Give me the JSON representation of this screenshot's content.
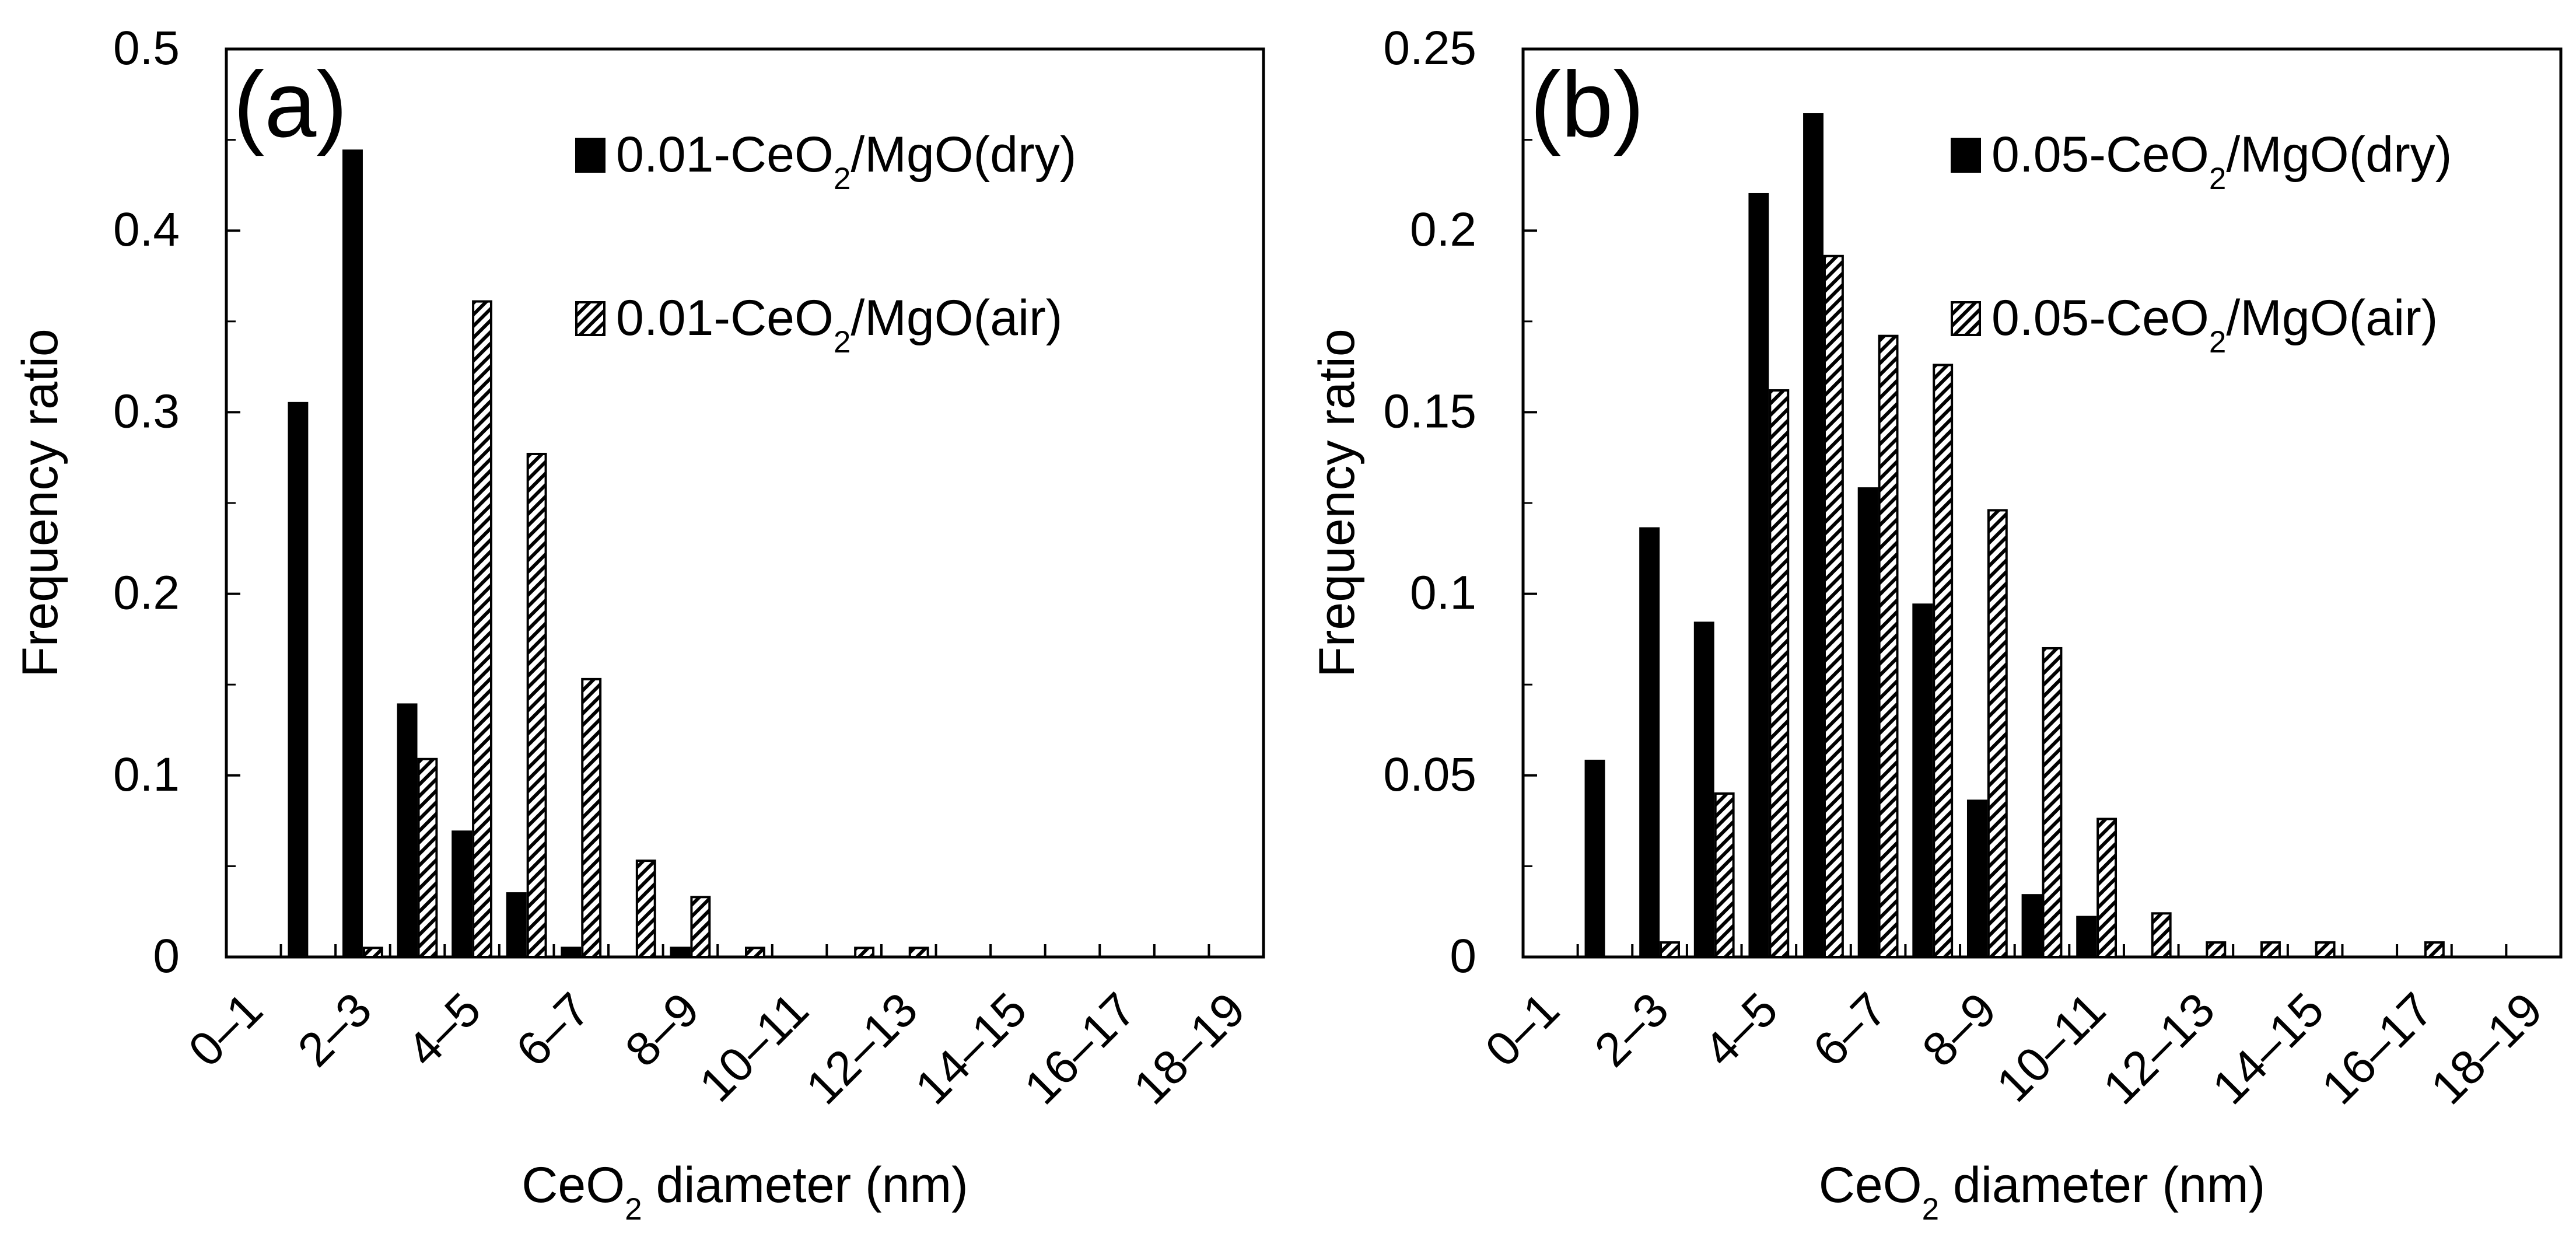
{
  "chart_data": [
    {
      "type": "bar",
      "panel_label": "(a)",
      "categories": [
        "0–1",
        "1–2",
        "2–3",
        "3–4",
        "4–5",
        "5–6",
        "6–7",
        "7–8",
        "8–9",
        "9–10",
        "10–11",
        "11–12",
        "12–13",
        "13–14",
        "14–15",
        "15–16",
        "16–17",
        "17–18",
        "18–19"
      ],
      "tick_labels": [
        "0–1",
        "2–3",
        "4–5",
        "6–7",
        "8–9",
        "10–11",
        "12–13",
        "14–15",
        "16–17",
        "18–19"
      ],
      "series": [
        {
          "name": "0.01-CeO2/MgO(dry)",
          "name_parts": [
            "0.01-CeO",
            "2",
            "/MgO(dry)"
          ],
          "pattern": "solid",
          "values": [
            0,
            0.305,
            0.444,
            0.139,
            0.069,
            0.035,
            0.005,
            0,
            0.005,
            0,
            0,
            0,
            0,
            0,
            0,
            0,
            0,
            0,
            0
          ]
        },
        {
          "name": "0.01-CeO2/MgO(air)",
          "name_parts": [
            "0.01-CeO",
            "2",
            "/MgO(air)"
          ],
          "pattern": "hatched",
          "values": [
            0,
            0,
            0.005,
            0.109,
            0.361,
            0.277,
            0.153,
            0.053,
            0.033,
            0.005,
            0,
            0.005,
            0.005,
            0,
            0,
            0,
            0,
            0,
            0
          ]
        }
      ],
      "ylim": [
        0,
        0.5
      ],
      "yticks": [
        "0",
        "0.1",
        "0.2",
        "0.3",
        "0.4",
        "0.5"
      ],
      "ytick_values": [
        0,
        0.1,
        0.2,
        0.3,
        0.4,
        0.5
      ],
      "ylabel": "Frequency ratio",
      "xlabel_parts": [
        "CeO",
        "2",
        " diameter (nm)"
      ],
      "legend_position": "top-right",
      "grid": false
    },
    {
      "type": "bar",
      "panel_label": "(b)",
      "categories": [
        "0–1",
        "1–2",
        "2–3",
        "3–4",
        "4–5",
        "5–6",
        "6–7",
        "7–8",
        "8–9",
        "9–10",
        "10–11",
        "11–12",
        "12–13",
        "13–14",
        "14–15",
        "15–16",
        "16–17",
        "17–18",
        "18–19"
      ],
      "tick_labels": [
        "0–1",
        "2–3",
        "4–5",
        "6–7",
        "8–9",
        "10–11",
        "12–13",
        "14–15",
        "16–17",
        "18–19"
      ],
      "series": [
        {
          "name": "0.05-CeO2/MgO(dry)",
          "name_parts": [
            "0.05-CeO",
            "2",
            "/MgO(dry)"
          ],
          "pattern": "solid",
          "values": [
            0,
            0.054,
            0.118,
            0.092,
            0.21,
            0.232,
            0.129,
            0.097,
            0.043,
            0.017,
            0.011,
            0,
            0,
            0,
            0,
            0,
            0,
            0,
            0
          ]
        },
        {
          "name": "0.05-CeO2/MgO(air)",
          "name_parts": [
            "0.05-CeO",
            "2",
            "/MgO(air)"
          ],
          "pattern": "hatched",
          "values": [
            0,
            0,
            0.004,
            0.045,
            0.156,
            0.193,
            0.171,
            0.163,
            0.123,
            0.085,
            0.038,
            0.012,
            0.004,
            0.004,
            0.004,
            0,
            0.004,
            0,
            0
          ]
        }
      ],
      "ylim": [
        0,
        0.25
      ],
      "yticks": [
        "0",
        "0.05",
        "0.1",
        "0.15",
        "0.2",
        "0.25"
      ],
      "ytick_values": [
        0,
        0.05,
        0.1,
        0.15,
        0.2,
        0.25
      ],
      "ylabel": "Frequency ratio",
      "xlabel_parts": [
        "CeO",
        "2",
        " diameter (nm)"
      ],
      "legend_position": "top-right",
      "grid": false
    }
  ]
}
